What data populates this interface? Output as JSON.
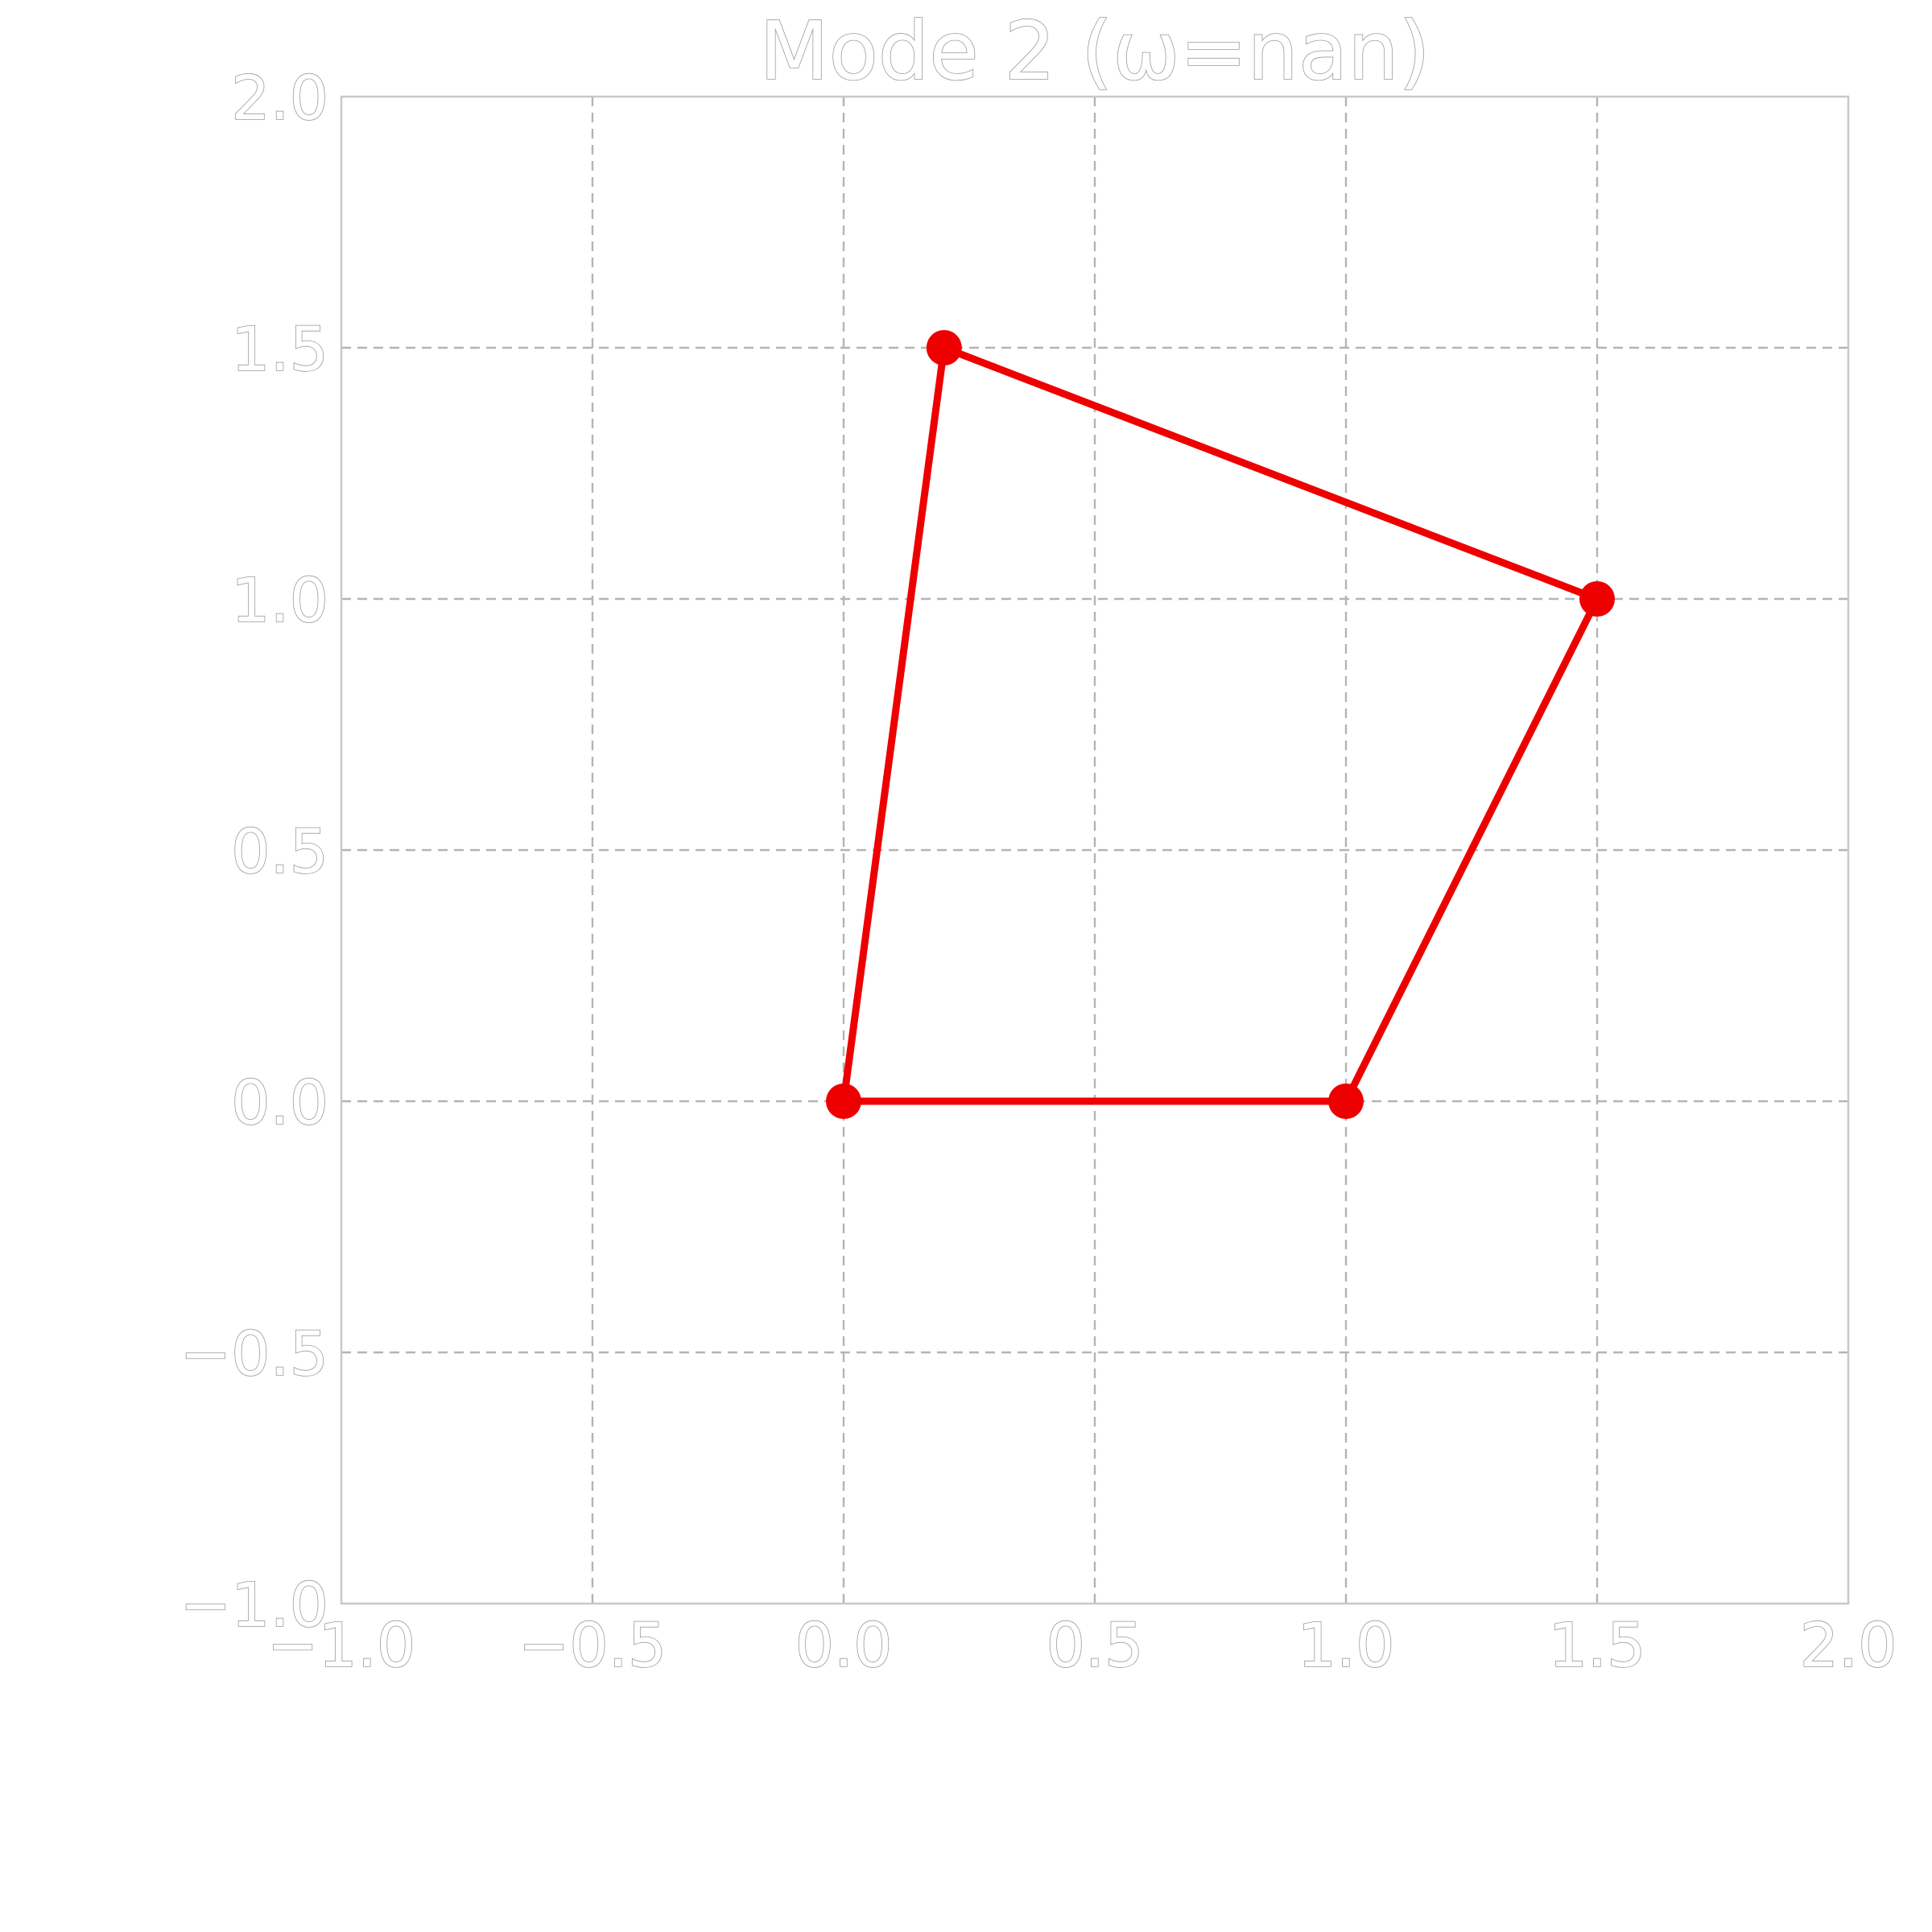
{
  "chart_data": {
    "type": "line",
    "title": "Mode 2 (ω=nan)",
    "xlabel": "",
    "ylabel": "",
    "xlim": [
      -1.0,
      2.0
    ],
    "ylim": [
      -1.0,
      2.0
    ],
    "x_ticks": [
      -1.0,
      -0.5,
      0.0,
      0.5,
      1.0,
      1.5,
      2.0
    ],
    "y_ticks": [
      -1.0,
      -0.5,
      0.0,
      0.5,
      1.0,
      1.5,
      2.0
    ],
    "x_tick_labels": [
      "−1.0",
      "−0.5",
      "0.0",
      "0.5",
      "1.0",
      "1.5",
      "2.0"
    ],
    "y_tick_labels": [
      "−1.0",
      "−0.5",
      "0.0",
      "0.5",
      "1.0",
      "1.5",
      "2.0"
    ],
    "grid": true,
    "series": [
      {
        "x": [
          0.0,
          1.0,
          1.5,
          0.2,
          0.0
        ],
        "y": [
          0.0,
          0.0,
          1.0,
          1.5,
          0.0
        ],
        "color": "#ee0000",
        "markers": true
      }
    ]
  }
}
